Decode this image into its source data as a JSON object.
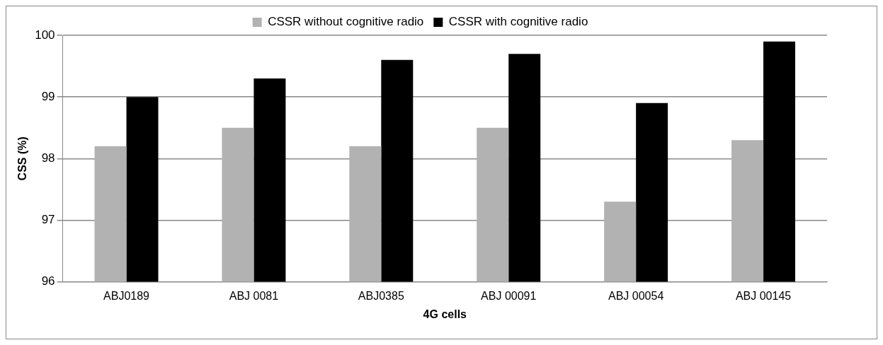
{
  "chart_data": {
    "type": "bar",
    "xlabel": "4G cells",
    "ylabel": "CSS (%)",
    "categories": [
      "ABJ0189",
      "ABJ 0081",
      "ABJ0385",
      "ABJ 00091",
      "ABJ 00054",
      "ABJ 00145"
    ],
    "series": [
      {
        "name": "CSSR without cognitive radio",
        "color": "#b2b2b2",
        "values": [
          98.2,
          98.5,
          98.2,
          98.5,
          97.3,
          98.3
        ]
      },
      {
        "name": "CSSR with cognitive radio",
        "color": "#000000",
        "values": [
          99.0,
          99.3,
          99.6,
          99.7,
          98.9,
          99.9
        ]
      }
    ],
    "ylim": [
      96,
      100
    ],
    "yticks": [
      96,
      97,
      98,
      99,
      100
    ],
    "grid": "y",
    "legend": "top"
  }
}
